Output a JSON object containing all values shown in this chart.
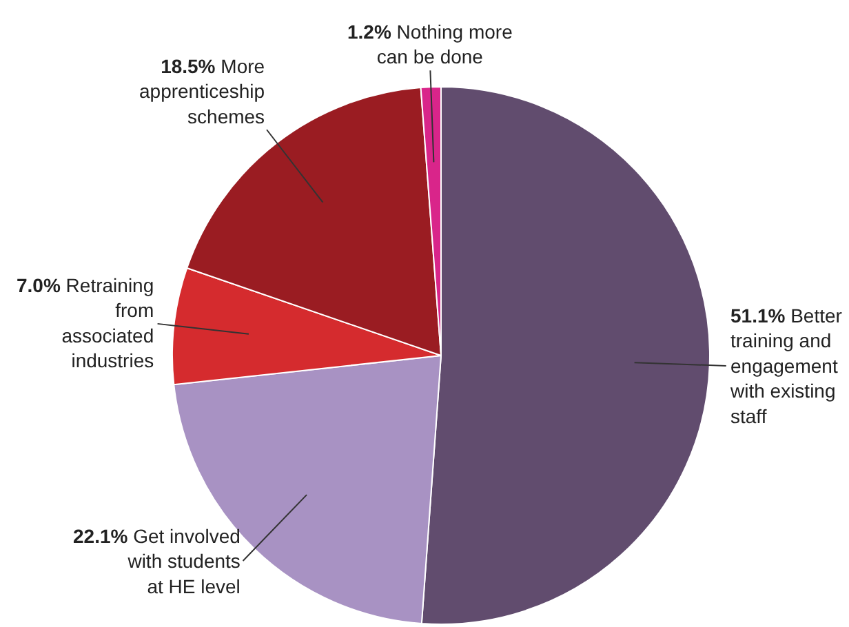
{
  "chart_data": {
    "type": "pie",
    "categories": [
      "Better training and engagement with existing staff",
      "Get involved with students at HE level",
      "Retraining from associated industries",
      "More apprenticeship schemes",
      "Nothing more can be done"
    ],
    "values": [
      51.1,
      22.1,
      7.0,
      18.5,
      1.2
    ],
    "value_labels": [
      "51.1%",
      "22.1%",
      "7.0%",
      "18.5%",
      "1.2%"
    ],
    "colors": [
      "#614c6e",
      "#a892c3",
      "#d52b2e",
      "#9a1c22",
      "#d9258a"
    ],
    "legend": false
  }
}
